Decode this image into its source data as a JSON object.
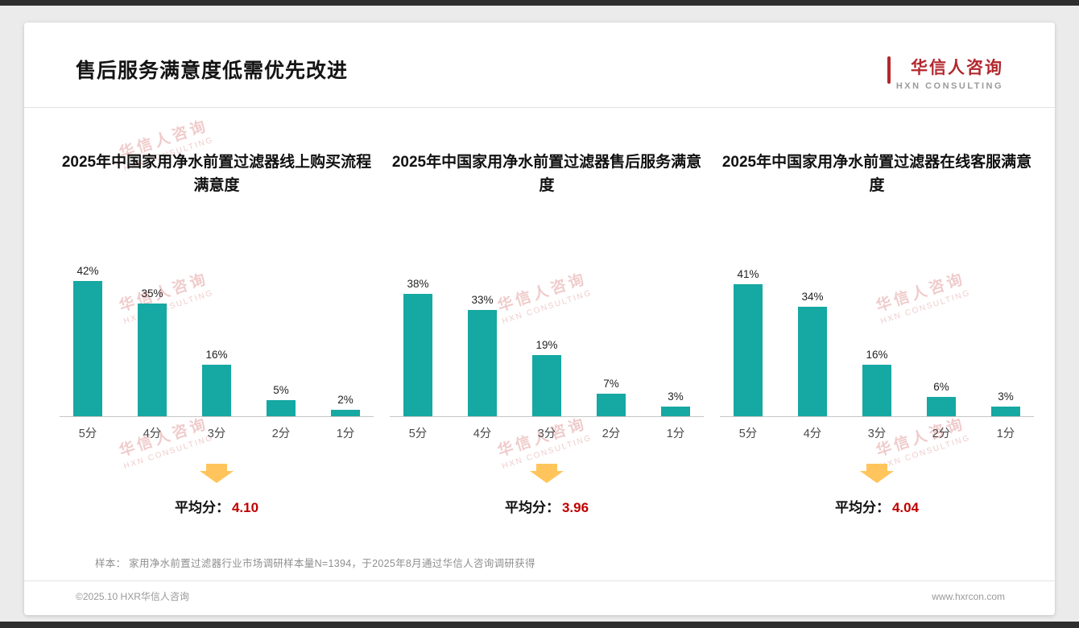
{
  "page": {
    "title": "售后服务满意度低需优先改进",
    "logo": {
      "name": "华信人咨询",
      "tagline": "HXN CONSULTING"
    },
    "watermark": {
      "line1": "华信人咨询",
      "line2": "HXN CONSULTING"
    }
  },
  "labels": {
    "average_prefix": "平均分："
  },
  "chart_data": [
    {
      "type": "bar",
      "title": "2025年中国家用净水前置过滤器线上购买流程满意度",
      "categories": [
        "5分",
        "4分",
        "3分",
        "2分",
        "1分"
      ],
      "values": [
        42,
        35,
        16,
        5,
        2
      ],
      "value_labels": [
        "42%",
        "35%",
        "16%",
        "5%",
        "2%"
      ],
      "average": "4.10",
      "ylim": [
        0,
        45
      ],
      "grid": false,
      "bar_color": "#16a8a2"
    },
    {
      "type": "bar",
      "title": "2025年中国家用净水前置过滤器售后服务满意度",
      "categories": [
        "5分",
        "4分",
        "3分",
        "2分",
        "1分"
      ],
      "values": [
        38,
        33,
        19,
        7,
        3
      ],
      "value_labels": [
        "38%",
        "33%",
        "19%",
        "7%",
        "3%"
      ],
      "average": "3.96",
      "ylim": [
        0,
        45
      ],
      "grid": false,
      "bar_color": "#16a8a2"
    },
    {
      "type": "bar",
      "title": "2025年中国家用净水前置过滤器在线客服满意度",
      "categories": [
        "5分",
        "4分",
        "3分",
        "2分",
        "1分"
      ],
      "values": [
        41,
        34,
        16,
        6,
        3
      ],
      "value_labels": [
        "41%",
        "34%",
        "16%",
        "6%",
        "3%"
      ],
      "average": "4.04",
      "ylim": [
        0,
        45
      ],
      "grid": false,
      "bar_color": "#16a8a2"
    }
  ],
  "footer": {
    "sample_note": "样本： 家用净水前置过滤器行业市场调研样本量N=1394，于2025年8月通过华信人咨询调研获得",
    "copyright": "©2025.10 HXR华信人咨询",
    "website": "www.hxrcon.com"
  },
  "colors": {
    "bar": "#16a8a2",
    "average_value": "#c00000",
    "arrow": "#ffc55c",
    "watermark": "rgba(216,118,118,0.38)"
  }
}
